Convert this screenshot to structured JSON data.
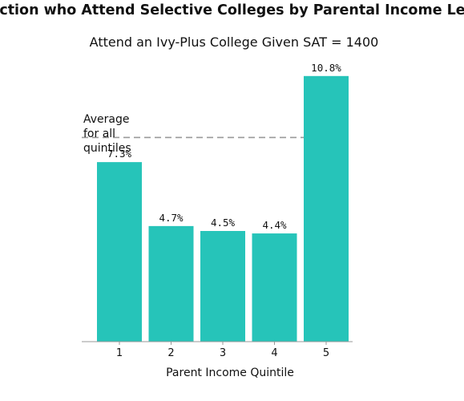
{
  "chart_data": {
    "type": "bar",
    "title": "Fraction who Attend Selective Colleges by Parental Income Level",
    "subtitle": "Attend an Ivy-Plus College Given SAT = 1400",
    "xlabel": "Parent Income Quintile",
    "ylabel": "",
    "categories": [
      "1",
      "2",
      "3",
      "4",
      "5"
    ],
    "values": [
      7.3,
      4.7,
      4.5,
      4.4,
      10.8
    ],
    "value_labels": [
      "7.3%",
      "4.7%",
      "4.5%",
      "4.4%",
      "10.8%"
    ],
    "ylim": [
      0,
      12
    ],
    "grid": false,
    "bar_color": "#26c4b9",
    "reference_line": {
      "value": 8.3,
      "label_lines": [
        "Average",
        "for all",
        "quintiles"
      ],
      "color": "#999999",
      "style": "dashed"
    }
  }
}
